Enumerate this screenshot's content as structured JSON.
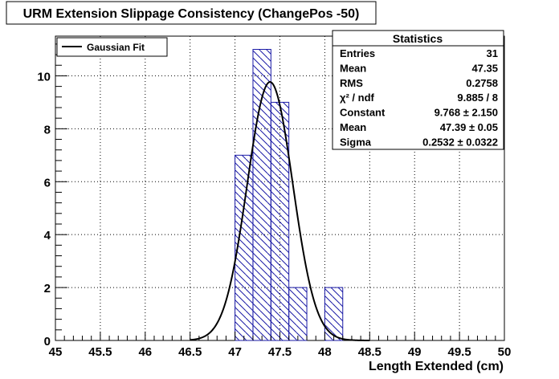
{
  "chart_data": {
    "type": "bar",
    "title": "URM Extension Slippage Consistency (ChangePos -50)",
    "xlabel": "Length Extended (cm)",
    "ylabel": "",
    "xlim": [
      45,
      50
    ],
    "ylim": [
      0,
      11.5
    ],
    "grid": true,
    "x_ticks": [
      "45",
      "45.5",
      "46",
      "46.5",
      "47",
      "47.5",
      "48",
      "48.5",
      "49",
      "49.5",
      "50"
    ],
    "y_ticks": [
      "0",
      "2",
      "4",
      "6",
      "8",
      "10"
    ],
    "histogram": {
      "bin_width": 0.2,
      "bins": [
        {
          "x0": 47.0,
          "x1": 47.2,
          "count": 7
        },
        {
          "x0": 47.2,
          "x1": 47.4,
          "count": 11
        },
        {
          "x0": 47.4,
          "x1": 47.6,
          "count": 9
        },
        {
          "x0": 47.6,
          "x1": 47.8,
          "count": 2
        },
        {
          "x0": 48.0,
          "x1": 48.2,
          "count": 2
        }
      ],
      "fill_style": "diagonal-hatch",
      "color": "#1a1aa6"
    },
    "fit": {
      "name": "Gaussian Fit",
      "function": "gaussian",
      "constant": 9.768,
      "mean": 47.39,
      "sigma": 0.2532,
      "x_range": [
        46.5,
        48.5
      ],
      "color": "#000000"
    },
    "legend": {
      "position": "top-left",
      "entries": [
        "Gaussian Fit"
      ]
    },
    "stats_box": {
      "title": "Statistics",
      "position": "top-right",
      "rows": [
        {
          "label": "Entries",
          "value": "31"
        },
        {
          "label": "Mean",
          "value": "47.35"
        },
        {
          "label": "RMS",
          "value": "0.2758"
        },
        {
          "label": "χ² / ndf",
          "value": "9.885 / 8"
        },
        {
          "label": "Constant",
          "value": "9.768 ± 2.150"
        },
        {
          "label": "Mean",
          "value": "47.39 ± 0.05"
        },
        {
          "label": "Sigma",
          "value": "0.2532 ± 0.0322"
        }
      ]
    }
  }
}
